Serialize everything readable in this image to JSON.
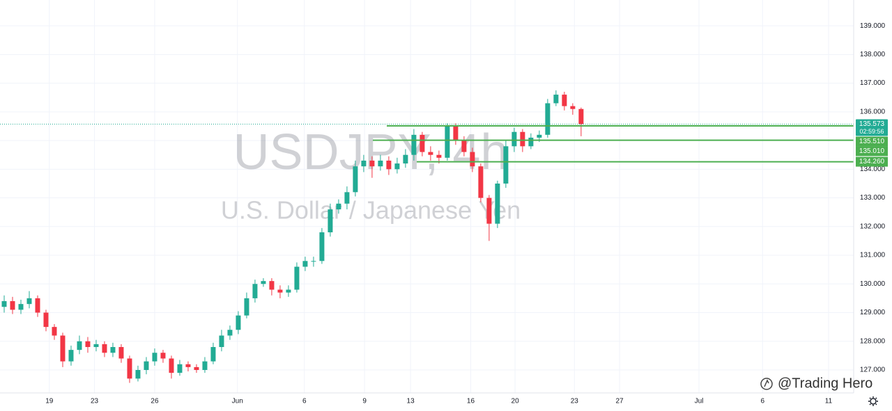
{
  "chart_data": {
    "type": "candlestick",
    "title": "USDJPY, 4h",
    "subtitle": "U.S. Dollar / Japanese Yen",
    "x": [
      0,
      1,
      2,
      3,
      4,
      5,
      6,
      7,
      8,
      9,
      10,
      11,
      12,
      13,
      14,
      15,
      16,
      17,
      18,
      19,
      20,
      21,
      22,
      23,
      24,
      25,
      26,
      27,
      28,
      29,
      30,
      31,
      32,
      33,
      34,
      35,
      36,
      37,
      38,
      39,
      40,
      41,
      42,
      43,
      44,
      45,
      46,
      47,
      48,
      49,
      50,
      51,
      52,
      53,
      54,
      55,
      56,
      57,
      58,
      59,
      60,
      61,
      62,
      63,
      64,
      65,
      66,
      67,
      68,
      69
    ],
    "open": [
      129.2,
      129.4,
      129.1,
      129.3,
      129.5,
      129.0,
      128.5,
      128.2,
      127.3,
      127.7,
      128.0,
      127.8,
      127.9,
      127.6,
      127.8,
      127.4,
      126.7,
      127.0,
      127.3,
      127.6,
      127.4,
      126.9,
      127.2,
      127.1,
      127.0,
      127.3,
      127.8,
      128.2,
      128.4,
      128.9,
      129.5,
      130.0,
      130.1,
      129.8,
      129.7,
      129.8,
      130.6,
      130.8,
      130.8,
      131.8,
      132.6,
      132.8,
      133.2,
      134.1,
      134.3,
      134.1,
      134.3,
      134.0,
      134.2,
      134.5,
      135.2,
      134.6,
      134.5,
      134.4,
      135.5,
      135.0,
      134.6,
      134.1,
      133.0,
      132.1,
      133.5,
      134.8,
      135.3,
      134.8,
      135.1,
      135.2,
      136.3,
      136.6,
      136.2,
      136.1
    ],
    "high": [
      129.6,
      129.55,
      129.45,
      129.75,
      129.6,
      129.1,
      128.6,
      128.3,
      127.85,
      128.2,
      128.15,
      128.05,
      128.0,
      127.95,
      127.9,
      127.5,
      127.15,
      127.45,
      127.75,
      127.7,
      127.5,
      127.35,
      127.3,
      127.2,
      127.45,
      127.95,
      128.4,
      128.55,
      129.05,
      129.7,
      130.15,
      130.2,
      130.2,
      129.95,
      129.95,
      130.75,
      130.95,
      130.95,
      131.95,
      132.8,
      132.95,
      133.4,
      134.3,
      134.5,
      134.45,
      134.5,
      134.45,
      134.4,
      134.7,
      135.4,
      135.3,
      134.8,
      134.65,
      135.6,
      135.6,
      135.15,
      134.75,
      134.2,
      133.1,
      133.6,
      135.0,
      135.45,
      135.4,
      135.25,
      135.35,
      136.45,
      136.75,
      136.7,
      136.3,
      136.15
    ],
    "low": [
      129.0,
      128.95,
      128.95,
      129.15,
      128.85,
      128.35,
      128.05,
      127.1,
      127.15,
      127.55,
      127.6,
      127.65,
      127.45,
      127.45,
      127.25,
      126.55,
      126.6,
      126.85,
      127.15,
      127.25,
      126.7,
      126.8,
      126.95,
      126.9,
      126.9,
      127.2,
      127.65,
      128.05,
      128.25,
      128.8,
      129.35,
      129.9,
      129.6,
      129.5,
      129.55,
      129.7,
      130.45,
      130.6,
      130.7,
      131.65,
      132.45,
      132.6,
      133.05,
      133.9,
      133.7,
      133.95,
      133.8,
      133.85,
      134.05,
      134.3,
      134.45,
      134.3,
      134.2,
      134.3,
      134.85,
      134.45,
      133.9,
      132.85,
      131.5,
      131.95,
      133.35,
      134.6,
      134.6,
      134.7,
      134.95,
      135.1,
      136.2,
      136.05,
      135.9,
      135.15
    ],
    "close": [
      129.4,
      129.1,
      129.3,
      129.5,
      129.0,
      128.5,
      128.2,
      127.3,
      127.7,
      128.0,
      127.8,
      127.9,
      127.6,
      127.8,
      127.4,
      126.7,
      127.0,
      127.3,
      127.6,
      127.4,
      126.9,
      127.2,
      127.1,
      127.0,
      127.3,
      127.8,
      128.2,
      128.4,
      128.9,
      129.5,
      130.0,
      130.1,
      129.8,
      129.7,
      129.8,
      130.6,
      130.8,
      130.8,
      131.8,
      132.6,
      132.8,
      133.2,
      134.1,
      134.3,
      134.1,
      134.3,
      134.0,
      134.2,
      134.5,
      135.2,
      134.6,
      134.5,
      134.4,
      135.5,
      135.0,
      134.6,
      134.1,
      133.0,
      132.1,
      133.5,
      134.8,
      135.3,
      134.8,
      135.1,
      135.2,
      136.3,
      136.6,
      136.2,
      136.1,
      135.573
    ],
    "up_color": "#22ab94",
    "down_color": "#f23645",
    "xlim": [
      -0.5,
      101.6
    ],
    "xticks": [
      {
        "value": 5.4,
        "label": "19"
      },
      {
        "value": 10.8,
        "label": "23"
      },
      {
        "value": 18,
        "label": "26"
      },
      {
        "value": 27.9,
        "label": "Jun"
      },
      {
        "value": 35.9,
        "label": "6"
      },
      {
        "value": 43.1,
        "label": "9"
      },
      {
        "value": 48.6,
        "label": "13"
      },
      {
        "value": 55.8,
        "label": "16"
      },
      {
        "value": 61.1,
        "label": "20"
      },
      {
        "value": 68.2,
        "label": "23"
      },
      {
        "value": 73.6,
        "label": "27"
      },
      {
        "value": 83.1,
        "label": "Jul"
      },
      {
        "value": 90.7,
        "label": "6"
      },
      {
        "value": 98.6,
        "label": "11"
      }
    ],
    "ylim": [
      126.2,
      139.9
    ],
    "yticks": [
      {
        "value": 127,
        "label": "127.000"
      },
      {
        "value": 128,
        "label": "128.000"
      },
      {
        "value": 129,
        "label": "129.000"
      },
      {
        "value": 130,
        "label": "130.000"
      },
      {
        "value": 131,
        "label": "131.000"
      },
      {
        "value": 132,
        "label": "132.000"
      },
      {
        "value": 133,
        "label": "133.000"
      },
      {
        "value": 134,
        "label": "134.000"
      },
      {
        "value": 135,
        "label": "135.000"
      },
      {
        "value": 136,
        "label": "136.000"
      },
      {
        "value": 137,
        "label": "137.000"
      },
      {
        "value": 138,
        "label": "138.000"
      },
      {
        "value": 139,
        "label": "139.000"
      }
    ],
    "grid": true,
    "levels": [
      {
        "value": 135.51,
        "label": "135.510"
      },
      {
        "value": 135.01,
        "label": "135.010"
      },
      {
        "value": 134.26,
        "label": "134.260"
      }
    ],
    "level_color": "#4caf50",
    "current_color": "#22ab94",
    "countdown": "02:59:56"
  },
  "footer": {
    "brand": "@Trading Hero"
  }
}
